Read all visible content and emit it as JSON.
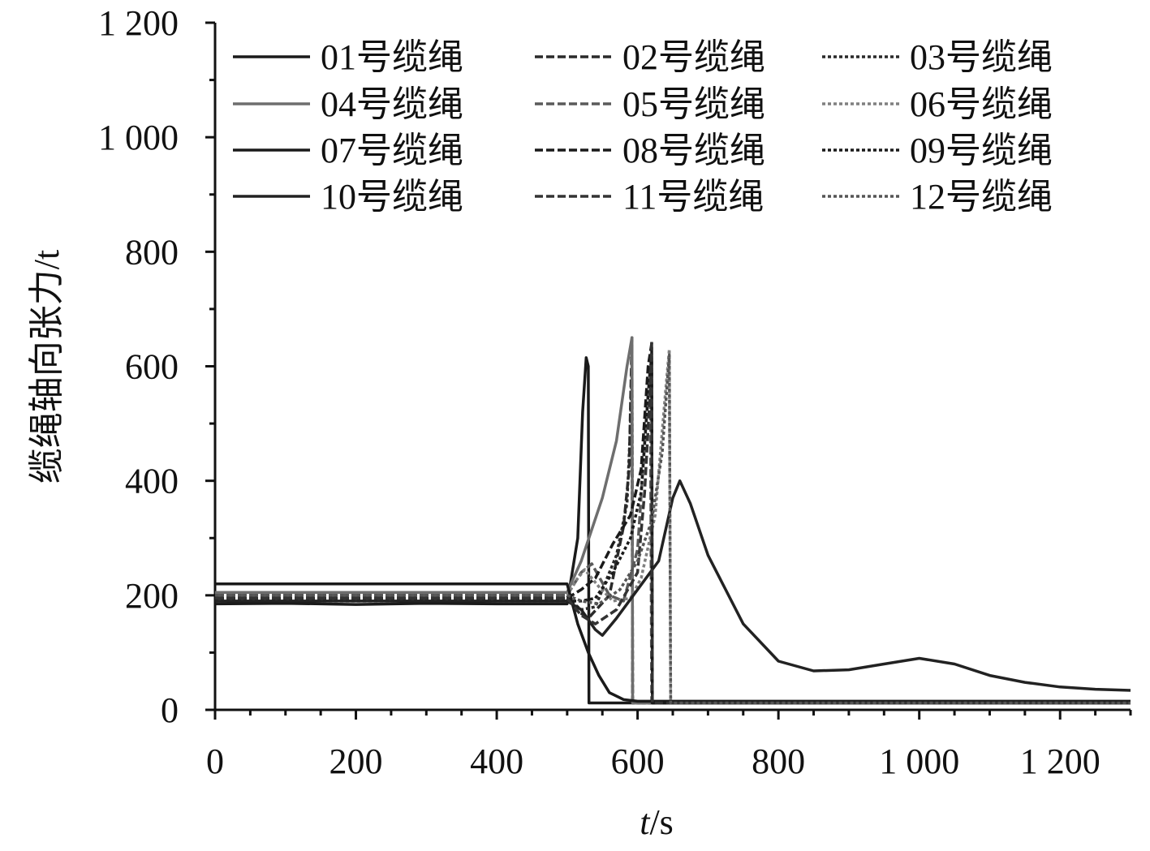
{
  "chart_data": {
    "type": "line",
    "xlabel_italic": "t",
    "xlabel_unit": "/s",
    "ylabel": "缆绳轴向张力/t",
    "xlim": [
      0,
      1300
    ],
    "ylim": [
      0,
      1200
    ],
    "x_ticks": [
      0,
      200,
      400,
      600,
      800,
      1000,
      1200
    ],
    "x_tick_labels": [
      "0",
      "200",
      "400",
      "600",
      "800",
      "1 000",
      "1 200"
    ],
    "y_ticks": [
      0,
      200,
      400,
      600,
      800,
      1000,
      1200
    ],
    "y_tick_labels": [
      "0",
      "200",
      "400",
      "600",
      "800",
      "1 000",
      "1 200"
    ],
    "grid": false,
    "legend_position": "top",
    "series": [
      {
        "name": "01号缆绳",
        "color": "#1a1a1a",
        "dash": "solid",
        "x": [
          0,
          100,
          200,
          300,
          400,
          500,
          515,
          522,
          527,
          530,
          531,
          1300
        ],
        "y": [
          185,
          186,
          184,
          186,
          185,
          185,
          300,
          520,
          615,
          600,
          12,
          12
        ]
      },
      {
        "name": "02号缆绳",
        "color": "#2a2a2a",
        "dash": "dash",
        "x": [
          0,
          200,
          400,
          500,
          512,
          530,
          560,
          580,
          588,
          592,
          593,
          1300
        ],
        "y": [
          200,
          200,
          200,
          200,
          175,
          160,
          200,
          320,
          420,
          650,
          12,
          12
        ]
      },
      {
        "name": "03号缆绳",
        "color": "#2a2a2a",
        "dash": "dot",
        "x": [
          0,
          200,
          400,
          500,
          520,
          540,
          570,
          585,
          590,
          592,
          593,
          1300
        ],
        "y": [
          195,
          195,
          195,
          195,
          175,
          180,
          270,
          360,
          500,
          610,
          12,
          12
        ]
      },
      {
        "name": "04号缆绳",
        "color": "#6e6e6e",
        "dash": "solid",
        "x": [
          0,
          200,
          400,
          500,
          520,
          550,
          570,
          585,
          592,
          593,
          1300
        ],
        "y": [
          205,
          205,
          205,
          205,
          260,
          370,
          470,
          600,
          650,
          12,
          12
        ]
      },
      {
        "name": "05号缆绳",
        "color": "#5a5a5a",
        "dash": "dash",
        "x": [
          0,
          200,
          400,
          500,
          520,
          535,
          560,
          580,
          600,
          612,
          618,
          620,
          1300
        ],
        "y": [
          200,
          200,
          200,
          200,
          240,
          255,
          200,
          190,
          280,
          500,
          600,
          12,
          12
        ]
      },
      {
        "name": "06号缆绳",
        "color": "#808080",
        "dash": "dot",
        "x": [
          0,
          200,
          400,
          500,
          515,
          525,
          545,
          565,
          590,
          605,
          625,
          640,
          645,
          647,
          1300
        ],
        "y": [
          200,
          200,
          200,
          200,
          230,
          245,
          215,
          190,
          195,
          230,
          340,
          560,
          630,
          12,
          12
        ]
      },
      {
        "name": "07号缆绳",
        "color": "#1a1a1a",
        "dash": "solid",
        "x": [
          0,
          200,
          400,
          500,
          515,
          530,
          545,
          560,
          580,
          600,
          600,
          1300
        ],
        "y": [
          220,
          220,
          220,
          220,
          150,
          100,
          60,
          30,
          18,
          15,
          15,
          15
        ]
      },
      {
        "name": "08号缆绳",
        "color": "#1a1a1a",
        "dash": "dash",
        "x": [
          0,
          200,
          400,
          500,
          520,
          540,
          565,
          590,
          605,
          615,
          620,
          621,
          1300
        ],
        "y": [
          195,
          195,
          195,
          195,
          210,
          230,
          290,
          340,
          420,
          600,
          640,
          12,
          12
        ]
      },
      {
        "name": "09号缆绳",
        "color": "#1a1a1a",
        "dash": "dot",
        "x": [
          0,
          200,
          400,
          500,
          520,
          540,
          565,
          590,
          605,
          615,
          620,
          621,
          1300
        ],
        "y": [
          190,
          190,
          190,
          190,
          190,
          195,
          240,
          300,
          380,
          550,
          620,
          12,
          12
        ]
      },
      {
        "name": "10号缆绳",
        "color": "#222222",
        "dash": "solid",
        "x": [
          0,
          100,
          200,
          300,
          400,
          500,
          520,
          540,
          550,
          570,
          600,
          630,
          650,
          660,
          675,
          700,
          750,
          800,
          850,
          900,
          950,
          1000,
          1050,
          1100,
          1150,
          1200,
          1250,
          1300
        ],
        "y": [
          190,
          190,
          190,
          190,
          190,
          190,
          175,
          140,
          130,
          160,
          210,
          260,
          370,
          400,
          360,
          270,
          150,
          85,
          68,
          70,
          80,
          90,
          80,
          60,
          48,
          40,
          36,
          34
        ]
      },
      {
        "name": "11号缆绳",
        "color": "#333333",
        "dash": "dash",
        "x": [
          0,
          200,
          400,
          500,
          520,
          540,
          570,
          600,
          610,
          618,
          620,
          621,
          1300
        ],
        "y": [
          195,
          195,
          195,
          195,
          165,
          150,
          175,
          240,
          380,
          560,
          645,
          12,
          12
        ]
      },
      {
        "name": "12号缆绳",
        "color": "#555555",
        "dash": "dot",
        "x": [
          0,
          200,
          400,
          500,
          520,
          545,
          575,
          600,
          620,
          635,
          645,
          647,
          1300
        ],
        "y": [
          200,
          200,
          200,
          200,
          190,
          185,
          210,
          260,
          330,
          450,
          620,
          12,
          12
        ]
      }
    ]
  }
}
